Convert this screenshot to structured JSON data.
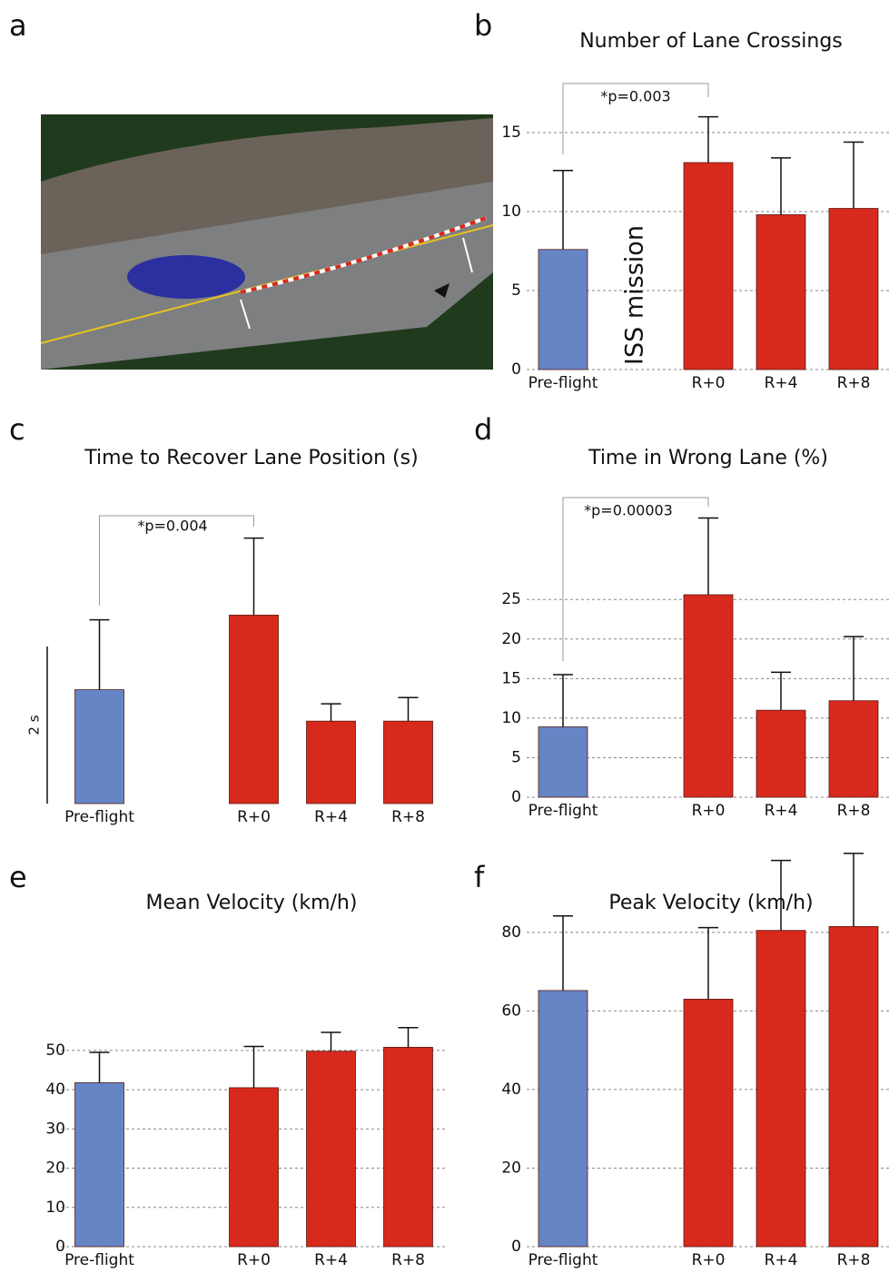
{
  "image_panel": {
    "panel_label": "a"
  },
  "chart_data": [
    {
      "type": "bar",
      "panel_label": "b",
      "title": "Number of Lane Crossings",
      "categories": [
        "Pre-flight",
        null,
        "R+0",
        "R+4",
        "R+8"
      ],
      "values": [
        7.6,
        null,
        13.1,
        9.8,
        10.2
      ],
      "errors": [
        5.0,
        null,
        2.9,
        3.6,
        4.2
      ],
      "colors": [
        "#6585c5",
        null,
        "#d8291d",
        "#d8291d",
        "#d8291d"
      ],
      "ylim": [
        0,
        17.5
      ],
      "yticks": [
        0,
        5,
        10,
        15
      ],
      "grid": true,
      "annotation": "*p=0.003",
      "gap_label": "ISS mission"
    },
    {
      "type": "bar",
      "panel_label": "c",
      "title": "Time to Recover Lane Position (s)",
      "categories": [
        "Pre-flight",
        null,
        "R+0",
        "R+4",
        "R+8"
      ],
      "values": [
        1.45,
        null,
        2.4,
        1.05,
        1.05
      ],
      "errors": [
        0.89,
        null,
        0.98,
        0.22,
        0.3
      ],
      "colors": [
        "#6585c5",
        null,
        "#d8291d",
        "#d8291d",
        "#d8291d"
      ],
      "ylim": [
        0,
        3.7
      ],
      "scale_bar": {
        "value": 2,
        "label": "2 s"
      },
      "grid": false,
      "annotation": "*p=0.004"
    },
    {
      "type": "bar",
      "panel_label": "d",
      "title": "Time in Wrong Lane (%)",
      "categories": [
        "Pre-flight",
        null,
        "R+0",
        "R+4",
        "R+8"
      ],
      "values": [
        8.9,
        null,
        25.6,
        11.0,
        12.2
      ],
      "errors": [
        6.6,
        null,
        9.7,
        4.8,
        8.1
      ],
      "colors": [
        "#6585c5",
        null,
        "#d8291d",
        "#d8291d",
        "#d8291d"
      ],
      "ylim": [
        0,
        38
      ],
      "yticks": [
        0,
        5,
        10,
        15,
        20,
        25
      ],
      "grid": true,
      "annotation": "*p=0.00003"
    },
    {
      "type": "bar",
      "panel_label": "e",
      "title": "Mean Velocity (km/h)",
      "categories": [
        "Pre-flight",
        null,
        "R+0",
        "R+4",
        "R+8"
      ],
      "values": [
        41.8,
        null,
        40.5,
        49.8,
        50.8
      ],
      "errors": [
        7.7,
        null,
        10.5,
        4.8,
        5.0
      ],
      "colors": [
        "#6585c5",
        null,
        "#d8291d",
        "#d8291d",
        "#d8291d"
      ],
      "ylim": [
        0,
        62
      ],
      "yticks": [
        0,
        10,
        20,
        30,
        40,
        50
      ],
      "grid": true
    },
    {
      "type": "bar",
      "panel_label": "f",
      "title": "Peak Velocity (km/h)",
      "categories": [
        "Pre-flight",
        null,
        "R+0",
        "R+4",
        "R+8"
      ],
      "values": [
        65.2,
        null,
        63.0,
        80.5,
        81.5
      ],
      "errors": [
        19.0,
        null,
        18.2,
        17.8,
        18.6
      ],
      "colors": [
        "#6585c5",
        null,
        "#d8291d",
        "#d8291d",
        "#d8291d"
      ],
      "ylim": [
        0,
        101
      ],
      "yticks": [
        0,
        20,
        40,
        60,
        80
      ],
      "grid": true
    }
  ]
}
